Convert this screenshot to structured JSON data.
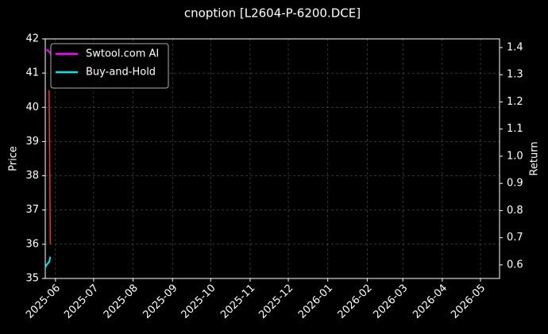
{
  "chart_data": {
    "type": "line",
    "title": "cnoption [L2604-P-6200.DCE]",
    "y_label": "Price",
    "y2_label": "Return",
    "xlim": [
      "2025-05-24",
      "2026-05-16"
    ],
    "xticks": [
      "2025-06",
      "2025-07",
      "2025-08",
      "2025-09",
      "2025-10",
      "2025-11",
      "2025-12",
      "2026-01",
      "2026-02",
      "2026-03",
      "2026-04",
      "2026-05"
    ],
    "ylim": [
      35,
      42
    ],
    "yticks": [
      35,
      36,
      37,
      38,
      39,
      40,
      41,
      42
    ],
    "y2lim": [
      0.55,
      1.432
    ],
    "y2ticks": [
      0.6,
      0.7,
      0.8,
      0.9,
      {
        "value": 1,
        "label": "1.0"
      },
      1.1,
      1.2,
      1.3,
      1.4
    ],
    "grid": true,
    "legend": "upper left",
    "series": [
      {
        "color": "#ff2a2a",
        "x": [
          "2025-05-27",
          "2025-05-28"
        ],
        "values": [
          40.5,
          36.0
        ]
      },
      {
        "name": "Swtool.com AI",
        "color": "#ff00ff",
        "axis": "y2",
        "x": [
          "2025-05-24",
          "2025-05-26",
          "2025-05-28",
          "2025-05-29"
        ],
        "values": [
          1.39,
          1.39,
          1.38,
          1.37
        ]
      },
      {
        "name": "Buy-and-Hold",
        "color": "#00e5ee",
        "axis": "y2",
        "x": [
          "2025-05-24",
          "2025-05-25",
          "2025-05-27",
          "2025-05-28"
        ],
        "values": [
          0.59,
          0.6,
          0.61,
          0.63
        ]
      }
    ]
  }
}
